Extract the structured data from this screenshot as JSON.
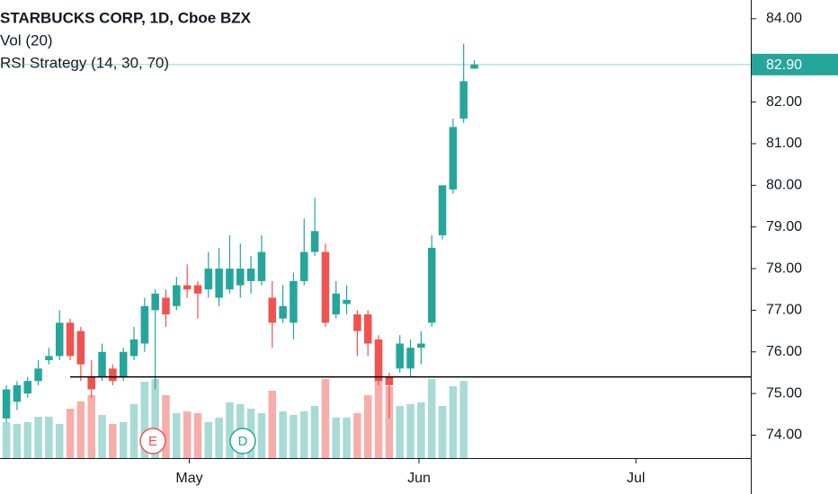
{
  "chart_data": {
    "type": "candlestick",
    "title": "STARBUCKS CORP, 1D, Cboe BZX",
    "indicators": [
      "Vol (20)",
      "RSI Strategy (14, 30, 70)"
    ],
    "up_color": "#26a69a",
    "down_color": "#ef5350",
    "volume_up_color": "#a8dbd6",
    "volume_down_color": "#f7aeab",
    "open": [
      74.4,
      74.8,
      75.0,
      75.3,
      75.8,
      75.9,
      76.7,
      76.5,
      75.4,
      75.4,
      75.6,
      75.4,
      75.9,
      76.2,
      77.0,
      77.3,
      77.1,
      77.6,
      77.6,
      77.5,
      77.3,
      77.5,
      77.6,
      77.7,
      77.7,
      77.3,
      76.8,
      76.7,
      77.7,
      78.4,
      78.4,
      76.9,
      77.15,
      76.9,
      76.9,
      76.3,
      75.4,
      75.6,
      75.6,
      76.1,
      76.7,
      78.8,
      79.9,
      81.6,
      82.8
    ],
    "high": [
      75.2,
      75.3,
      75.4,
      75.8,
      76.1,
      77.0,
      76.8,
      76.6,
      75.8,
      76.2,
      75.7,
      76.1,
      76.6,
      77.3,
      77.5,
      77.5,
      77.8,
      78.1,
      77.7,
      78.4,
      78.5,
      78.8,
      78.6,
      78.3,
      78.8,
      77.7,
      77.6,
      77.9,
      79.2,
      79.7,
      78.6,
      77.7,
      77.6,
      77.0,
      77.0,
      76.4,
      75.5,
      76.4,
      76.3,
      76.5,
      78.8,
      80.0,
      81.6,
      83.4,
      83.0
    ],
    "low": [
      74.3,
      74.6,
      74.9,
      75.2,
      75.7,
      75.8,
      75.8,
      75.3,
      74.9,
      75.3,
      75.2,
      75.3,
      75.8,
      76.0,
      75.1,
      76.6,
      77.0,
      77.3,
      76.8,
      77.3,
      77.1,
      77.4,
      77.3,
      77.4,
      77.6,
      76.1,
      76.7,
      76.3,
      77.6,
      78.3,
      76.6,
      76.8,
      76.9,
      75.9,
      75.9,
      75.2,
      74.4,
      75.5,
      75.4,
      75.7,
      76.6,
      78.7,
      79.8,
      81.5,
      82.8
    ],
    "close": [
      75.1,
      75.2,
      75.3,
      75.6,
      75.9,
      76.7,
      75.9,
      75.7,
      75.1,
      76.0,
      75.3,
      76.0,
      76.3,
      77.1,
      77.4,
      76.9,
      77.6,
      77.5,
      77.4,
      78.0,
      78.0,
      78.0,
      78.0,
      78.0,
      78.4,
      76.7,
      77.1,
      77.7,
      78.4,
      78.9,
      76.7,
      77.4,
      77.25,
      76.5,
      76.2,
      75.3,
      75.2,
      76.2,
      76.1,
      76.2,
      78.5,
      80.0,
      81.4,
      82.5,
      82.9
    ],
    "volume": [
      40,
      38,
      40,
      46,
      46,
      38,
      55,
      63,
      70,
      48,
      38,
      40,
      60,
      85,
      88,
      70,
      50,
      52,
      50,
      40,
      45,
      62,
      60,
      55,
      50,
      75,
      52,
      48,
      52,
      58,
      88,
      45,
      45,
      50,
      70,
      92,
      80,
      58,
      60,
      62,
      88,
      58,
      80,
      86,
      null
    ],
    "ylim": [
      73.45,
      84.45
    ],
    "yticks": [
      {
        "value": 74,
        "label": "74.00"
      },
      {
        "value": 75,
        "label": "75.00"
      },
      {
        "value": 76,
        "label": "76.00"
      },
      {
        "value": 77,
        "label": "77.00"
      },
      {
        "value": 78,
        "label": "78.00"
      },
      {
        "value": 79,
        "label": "79.00"
      },
      {
        "value": 80,
        "label": "80.00"
      },
      {
        "value": 81,
        "label": "81.00"
      },
      {
        "value": 82,
        "label": "82.00"
      },
      {
        "value": 84,
        "label": "84.00"
      }
    ],
    "xlim": [
      -0.6,
      70
    ],
    "xticks": [
      {
        "value": 17.2,
        "label": "May"
      },
      {
        "value": 38.8,
        "label": "Jun"
      },
      {
        "value": 59.2,
        "label": "Jul"
      }
    ],
    "last_price": 82.9,
    "last_price_label": "82.90",
    "last_price_color": "#26a69a",
    "horizontal_line": 75.4,
    "events": [
      "E",
      "D"
    ]
  }
}
